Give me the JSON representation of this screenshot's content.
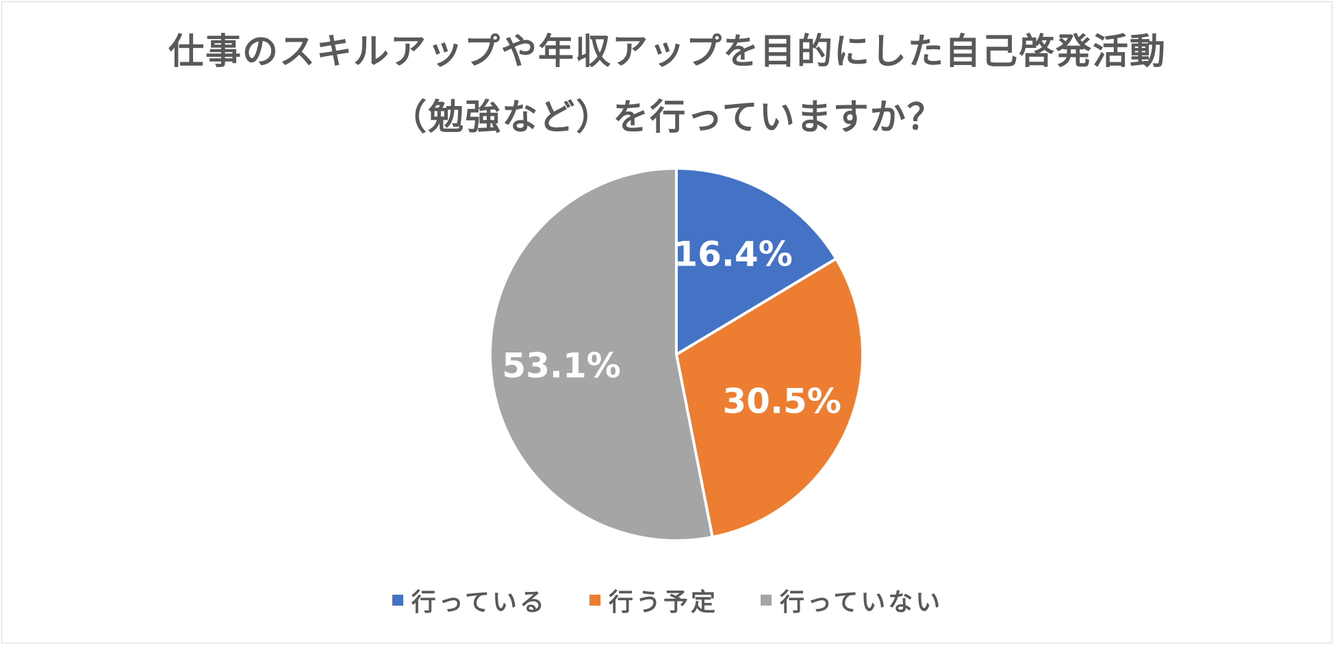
{
  "chart_data": {
    "type": "pie",
    "title_lines": [
      "仕事のスキルアップや年収アップを目的にした自己啓発活動",
      "（勉強など）を行っていますか？"
    ],
    "categories": [
      "行っている",
      "行う予定",
      "行っていない"
    ],
    "values": [
      16.4,
      30.5,
      53.1
    ],
    "value_labels": [
      "16.4%",
      "30.5%",
      "53.1%"
    ],
    "colors": [
      "#4472c4",
      "#ed7d31",
      "#a5a5a5"
    ],
    "start_angle": "12 o'clock",
    "direction": "clockwise",
    "legend_position": "bottom"
  }
}
